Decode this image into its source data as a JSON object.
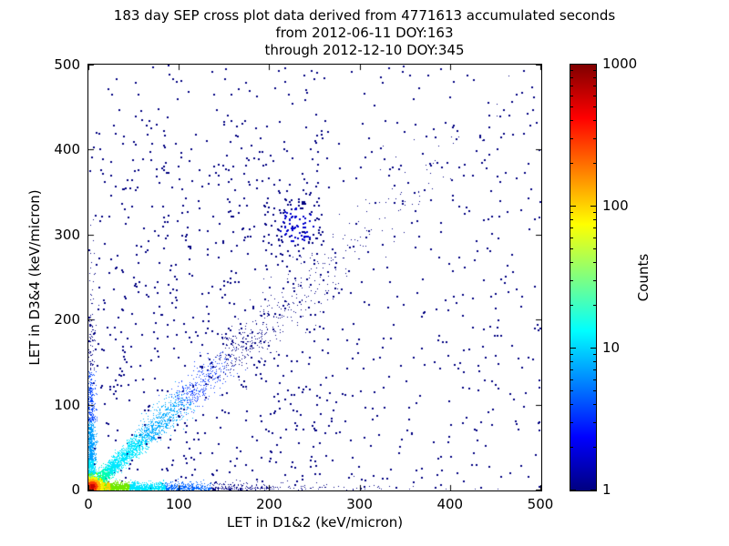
{
  "chart_data": {
    "type": "scatter-density",
    "title_lines": [
      "183 day SEP cross plot data derived from 4771613 accumulated seconds",
      "from 2012-06-11 DOY:163",
      "through 2012-12-10 DOY:345"
    ],
    "xlabel": "LET in D1&2 (keV/micron)",
    "ylabel": "LET in D3&4 (keV/micron)",
    "xlim": [
      0,
      500
    ],
    "ylim": [
      0,
      500
    ],
    "xticks": [
      0,
      100,
      200,
      300,
      400,
      500
    ],
    "yticks": [
      0,
      100,
      200,
      300,
      400,
      500
    ],
    "grid": false,
    "colorbar": {
      "label": "Counts",
      "scale": "log",
      "min": 1,
      "max": 1000,
      "ticks": [
        1,
        10,
        100,
        1000
      ],
      "colormap": "jet"
    },
    "features": [
      {
        "name": "sparse-field",
        "type": "uniform",
        "n": 750,
        "x": [
          0,
          500
        ],
        "y": [
          0,
          500
        ],
        "color": "#000080",
        "size": 2
      },
      {
        "name": "sparse-field-left",
        "type": "uniform",
        "n": 380,
        "x": [
          0,
          270
        ],
        "y": [
          0,
          430
        ],
        "color": "#000080",
        "size": 2
      },
      {
        "name": "diagonal-ridge",
        "type": "diagonal",
        "n": 3000,
        "decay": 75,
        "max": 500,
        "spread_base": 2.5,
        "spread_growth": 0.055,
        "size": 1,
        "ramp": [
          [
            22,
            "#00ffb0"
          ],
          [
            60,
            "#00e8ff"
          ],
          [
            105,
            "#00aaff"
          ],
          [
            150,
            "#1440ff"
          ],
          [
            null,
            "#000080"
          ]
        ]
      },
      {
        "name": "x-axis-band",
        "type": "band_x",
        "n": 2600,
        "decay": 55,
        "max": 500,
        "spread": 4,
        "size": 1,
        "ramp": [
          [
            10,
            "#ff4500"
          ],
          [
            24,
            "#ffd000"
          ],
          [
            45,
            "#70e800"
          ],
          [
            85,
            "#00e5ff"
          ],
          [
            135,
            "#0064ff"
          ],
          [
            null,
            "#000080"
          ]
        ]
      },
      {
        "name": "y-axis-band",
        "type": "band_y",
        "n": 1500,
        "decay": 48,
        "max": 500,
        "spread": 3.5,
        "size": 1,
        "ramp": [
          [
            12,
            "#a0ff00"
          ],
          [
            35,
            "#00e5ff"
          ],
          [
            80,
            "#00a0ff"
          ],
          [
            140,
            "#0040ff"
          ],
          [
            null,
            "#000080"
          ]
        ]
      },
      {
        "name": "origin-core",
        "type": "cluster",
        "cx": 4,
        "cy": 4,
        "sx": 5.5,
        "sy": 5.5,
        "n": 2000,
        "size": 1,
        "ramp": [
          [
            0.6,
            "#c80000"
          ],
          [
            1.1,
            "#ff3c00"
          ],
          [
            1.7,
            "#ffb400"
          ],
          [
            2.4,
            "#f0ff00"
          ],
          [
            3.2,
            "#64ff00"
          ],
          [
            null,
            "#00e5ff"
          ]
        ]
      },
      {
        "name": "mid-diagonal-cluster",
        "type": "cluster",
        "cx": 230,
        "cy": 312,
        "sx": 17,
        "sy": 17,
        "n": 120,
        "size": 2,
        "ramp": [
          [
            1.2,
            "#0000cd"
          ],
          [
            null,
            "#000080"
          ]
        ]
      }
    ]
  }
}
